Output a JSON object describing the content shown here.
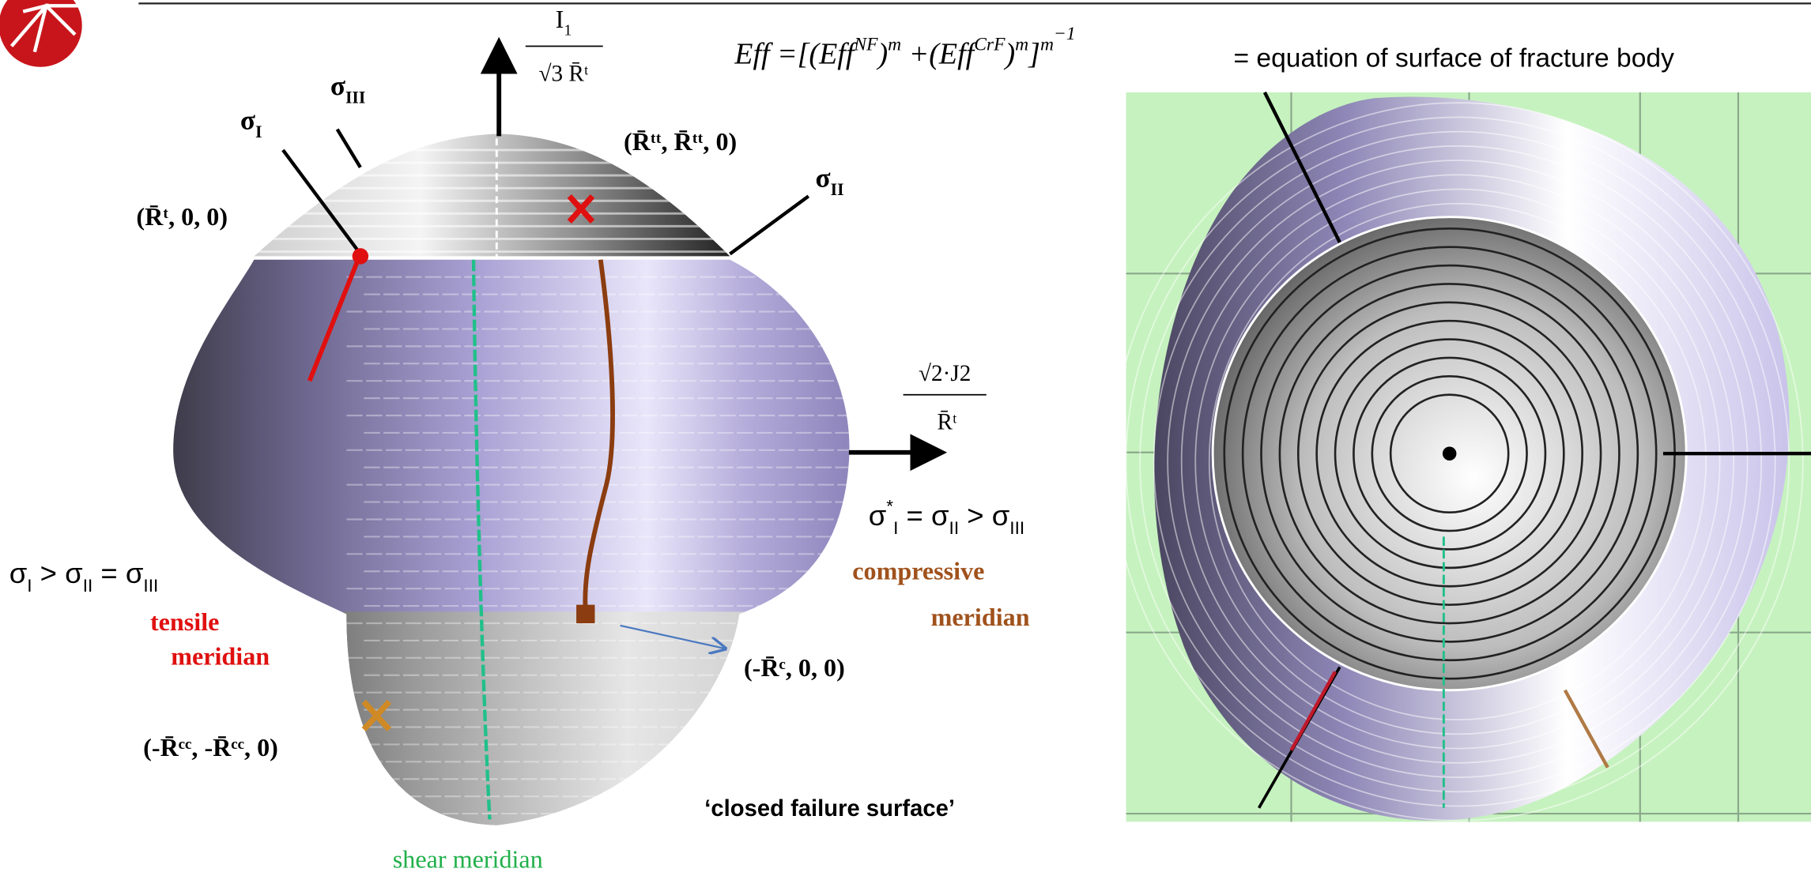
{
  "equation": [
    {
      "t": "Eff"
    },
    {
      "t": " =[("
    },
    {
      "t": "Eff"
    },
    {
      "t": "NF",
      "level": 1
    },
    {
      "t": ")"
    },
    {
      "t": "m",
      "level": 1
    },
    {
      "t": " +("
    },
    {
      "t": "Eff"
    },
    {
      "t": "CrF",
      "level": 1
    },
    {
      "t": ")"
    },
    {
      "t": "m",
      "level": 1
    },
    {
      "t": "]"
    },
    {
      "t": "m",
      "level": 1
    },
    {
      "t": "−1",
      "level": 2
    }
  ],
  "equation_caption": "= equation of surface of fracture body",
  "axis_top": {
    "numerator": [
      {
        "t": "I"
      },
      {
        "t": "1",
        "level": -1
      }
    ],
    "denominator": "√3  R̄ᵗ"
  },
  "axis_right": {
    "numerator": "√2·J2",
    "denominator": "R̄ᵗ"
  },
  "stress_axes": [
    [
      {
        "t": "σ"
      },
      {
        "t": "III",
        "level": -1
      }
    ],
    [
      {
        "t": "σ"
      },
      {
        "t": "I",
        "level": -1
      }
    ],
    [
      {
        "t": "σ"
      },
      {
        "t": "II",
        "level": -1
      }
    ]
  ],
  "points": [
    "(R̄ᵗ, 0, 0)",
    "(R̄ᵗᵗ, R̄ᵗᵗ, 0)",
    "(-R̄ᶜ, 0, 0)",
    "(-R̄ᶜᶜ, -R̄ᶜᶜ, 0)"
  ],
  "conditions": [
    [
      {
        "t": "σ"
      },
      {
        "t": "I",
        "level": -1
      },
      {
        "t": " > σ"
      },
      {
        "t": "II",
        "level": -1
      },
      {
        "t": " = σ"
      },
      {
        "t": "III",
        "level": -1
      }
    ],
    [
      {
        "t": "σ"
      },
      {
        "t": "*",
        "level": 1
      },
      {
        "t": "I",
        "level": -1
      },
      {
        "t": " = σ"
      },
      {
        "t": "II",
        "level": -1
      },
      {
        "t": " > σ"
      },
      {
        "t": "III",
        "level": -1
      }
    ]
  ],
  "meridians": {
    "tensile": [
      "tensile",
      "meridian"
    ],
    "compressive": [
      "compressive",
      "meridian"
    ],
    "shear": "shear meridian"
  },
  "note": "‘closed failure surface’"
}
